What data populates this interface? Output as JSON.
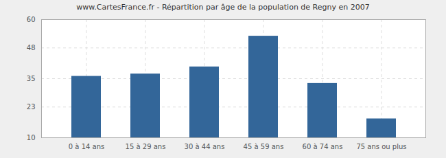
{
  "chart_data": {
    "type": "bar",
    "title": "www.CartesFrance.fr - Répartition par âge de la population de Regny en 2007",
    "categories": [
      "0 à 14 ans",
      "15 à 29 ans",
      "30 à 44 ans",
      "45 à 59 ans",
      "60 à 74 ans",
      "75 ans ou plus"
    ],
    "values": [
      36,
      37,
      40,
      53,
      33,
      18
    ],
    "color": "#336699",
    "ylim": [
      10,
      60
    ],
    "yticks": [
      10,
      23,
      35,
      48,
      60
    ],
    "grid": true
  }
}
